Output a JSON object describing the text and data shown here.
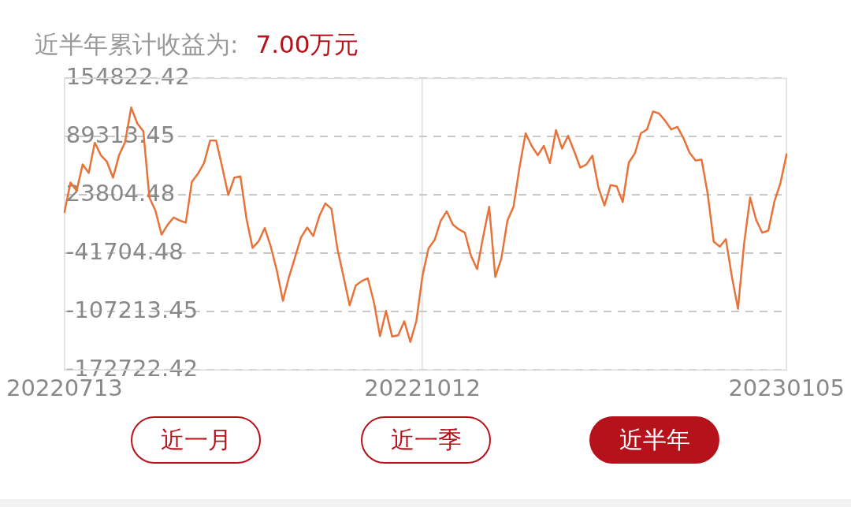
{
  "chart_data": {
    "type": "line",
    "title": "近半年累计收益为:",
    "subtitle": "7.00万元",
    "categories": [
      "20220713",
      null,
      null,
      null,
      null,
      null,
      null,
      null,
      null,
      null,
      null,
      null,
      null,
      null,
      null,
      null,
      null,
      null,
      null,
      null,
      null,
      null,
      null,
      null,
      null,
      null,
      null,
      null,
      null,
      null,
      null,
      null,
      null,
      null,
      null,
      null,
      null,
      null,
      null,
      null,
      null,
      null,
      null,
      null,
      null,
      null,
      null,
      null,
      null,
      null,
      null,
      null,
      null,
      null,
      null,
      null,
      null,
      null,
      null,
      "20221012",
      null,
      null,
      null,
      null,
      null,
      null,
      null,
      null,
      null,
      null,
      null,
      null,
      null,
      null,
      null,
      null,
      null,
      null,
      null,
      null,
      null,
      null,
      null,
      null,
      null,
      null,
      null,
      null,
      null,
      null,
      null,
      null,
      null,
      null,
      null,
      null,
      null,
      null,
      null,
      null,
      null,
      null,
      null,
      null,
      null,
      null,
      null,
      null,
      null,
      null,
      null,
      null,
      null,
      null,
      null,
      null,
      null,
      null,
      null,
      "20230105"
    ],
    "series": [
      {
        "color": "#e8733a",
        "values": [
          4600,
          37900,
          28400,
          58100,
          48600,
          82500,
          68500,
          61100,
          43300,
          68500,
          83400,
          122100,
          104200,
          95300,
          20900,
          6100,
          -20700,
          -9700,
          -1400,
          -4900,
          -7300,
          38800,
          47700,
          59600,
          84900,
          84900,
          55200,
          23900,
          43300,
          44700,
          -2900,
          -35600,
          -28100,
          -13300,
          -34100,
          -60900,
          -95100,
          -68300,
          -46000,
          -23700,
          -12700,
          -22200,
          100,
          14400,
          8200,
          -37100,
          -68300,
          -100100,
          -77800,
          -72800,
          -69800,
          -96600,
          -134600,
          -106400,
          -135200,
          -133800,
          -118000,
          -141200,
          -117400,
          -66800,
          -36200,
          -26700,
          -5200,
          5500,
          -9400,
          -14800,
          -18600,
          -44500,
          -59400,
          -23100,
          10500,
          -68300,
          -47500,
          -4900,
          10500,
          55200,
          93200,
          79000,
          68500,
          79000,
          59600,
          96800,
          76000,
          90300,
          73000,
          54600,
          58100,
          68000,
          32000,
          12000,
          34900,
          33700,
          15900,
          60200,
          70600,
          93200,
          97400,
          117600,
          115300,
          107200,
          97400,
          100400,
          87900,
          71500,
          62600,
          63500,
          25400,
          -28700,
          -34100,
          -25800,
          -68300,
          -104000,
          -31100,
          20900,
          -4300,
          -18600,
          -16200,
          16500,
          37300,
          69400
        ]
      }
    ],
    "ylim": [
      -172722.42,
      154822.42
    ],
    "yticks": [
      -172722.42,
      -107213.45,
      -41704.48,
      23804.48,
      89313.45,
      154822.42
    ],
    "grid": true,
    "annotations": [
      "近一月",
      "近一季",
      "近半年"
    ]
  }
}
